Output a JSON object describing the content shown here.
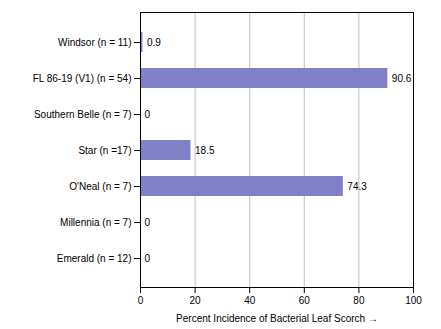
{
  "chart_data": {
    "type": "bar",
    "orientation": "horizontal",
    "categories": [
      "Emerald (n = 12)",
      "Millennia (n = 7)",
      "O'Neal (n = 7)",
      "Star (n =17)",
      "Southern Belle (n = 7)",
      "FL 86-19 (V1) (n = 54)",
      "Windsor (n = 11)"
    ],
    "values": [
      0,
      0,
      74.3,
      18.5,
      0,
      90.6,
      0.9
    ],
    "value_labels": [
      "0",
      "0",
      "74.3",
      "18.5",
      "0",
      "90.6",
      "0.9"
    ],
    "data_labels": true,
    "color": "#8080c8",
    "xlabel": "Percent Incidence of Bacterial Leaf Scorch",
    "xlim": [
      0,
      100
    ],
    "xticks": [
      0,
      20,
      40,
      60,
      80,
      100
    ],
    "grid": true
  }
}
